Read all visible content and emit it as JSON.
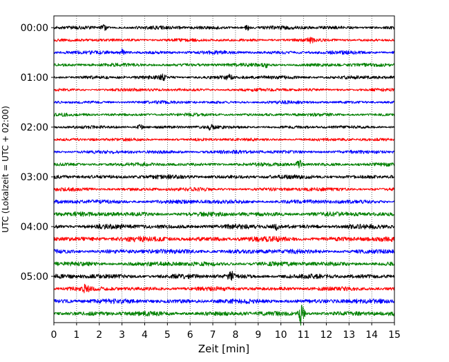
{
  "chart_data": {
    "type": "line",
    "title": "",
    "xlabel": "Zeit  [min]",
    "ylabel": "UTC (Lokalzeit = UTC + 02:00)",
    "xlim": [
      0,
      15
    ],
    "x_ticks": [
      "0",
      "1",
      "2",
      "3",
      "4",
      "5",
      "6",
      "7",
      "8",
      "9",
      "10",
      "11",
      "12",
      "13",
      "14",
      "15"
    ],
    "y_ticks": [
      "00:00",
      "01:00",
      "02:00",
      "03:00",
      "04:00",
      "05:00"
    ],
    "grid": "vertical dotted at each minute",
    "trace_minutes": [
      "00:00",
      "00:15",
      "00:30",
      "00:45",
      "01:00",
      "01:15",
      "01:30",
      "01:45",
      "02:00",
      "02:15",
      "02:30",
      "02:45",
      "03:00",
      "03:15",
      "03:30",
      "03:45",
      "04:00",
      "04:15",
      "04:30",
      "04:45",
      "05:00",
      "05:15",
      "05:30",
      "05:45"
    ],
    "trace_colors": [
      "#000000",
      "#ff0000",
      "#0000ff",
      "#008000"
    ],
    "trace_amplitude": [
      0.35,
      0.3,
      0.35,
      0.35,
      0.35,
      0.3,
      0.3,
      0.3,
      0.3,
      0.3,
      0.35,
      0.35,
      0.4,
      0.35,
      0.4,
      0.45,
      0.45,
      0.5,
      0.45,
      0.45,
      0.45,
      0.4,
      0.45,
      0.45
    ],
    "events": [
      {
        "trace": 0,
        "minute": 2.2,
        "amp": 0.6
      },
      {
        "trace": 0,
        "minute": 8.5,
        "amp": 0.6
      },
      {
        "trace": 1,
        "minute": 11.3,
        "amp": 0.6
      },
      {
        "trace": 2,
        "minute": 3.0,
        "amp": 0.7
      },
      {
        "trace": 3,
        "minute": 9.3,
        "amp": 0.6
      },
      {
        "trace": 4,
        "minute": 4.8,
        "amp": 0.6
      },
      {
        "trace": 4,
        "minute": 7.7,
        "amp": 0.7
      },
      {
        "trace": 8,
        "minute": 3.8,
        "amp": 0.7
      },
      {
        "trace": 8,
        "minute": 6.9,
        "amp": 0.7
      },
      {
        "trace": 11,
        "minute": 10.8,
        "amp": 0.9
      },
      {
        "trace": 16,
        "minute": 9.8,
        "amp": 0.8
      },
      {
        "trace": 20,
        "minute": 7.8,
        "amp": 1.2
      },
      {
        "trace": 21,
        "minute": 1.4,
        "amp": 0.8
      },
      {
        "trace": 23,
        "minute": 10.9,
        "amp": 2.6
      }
    ]
  }
}
